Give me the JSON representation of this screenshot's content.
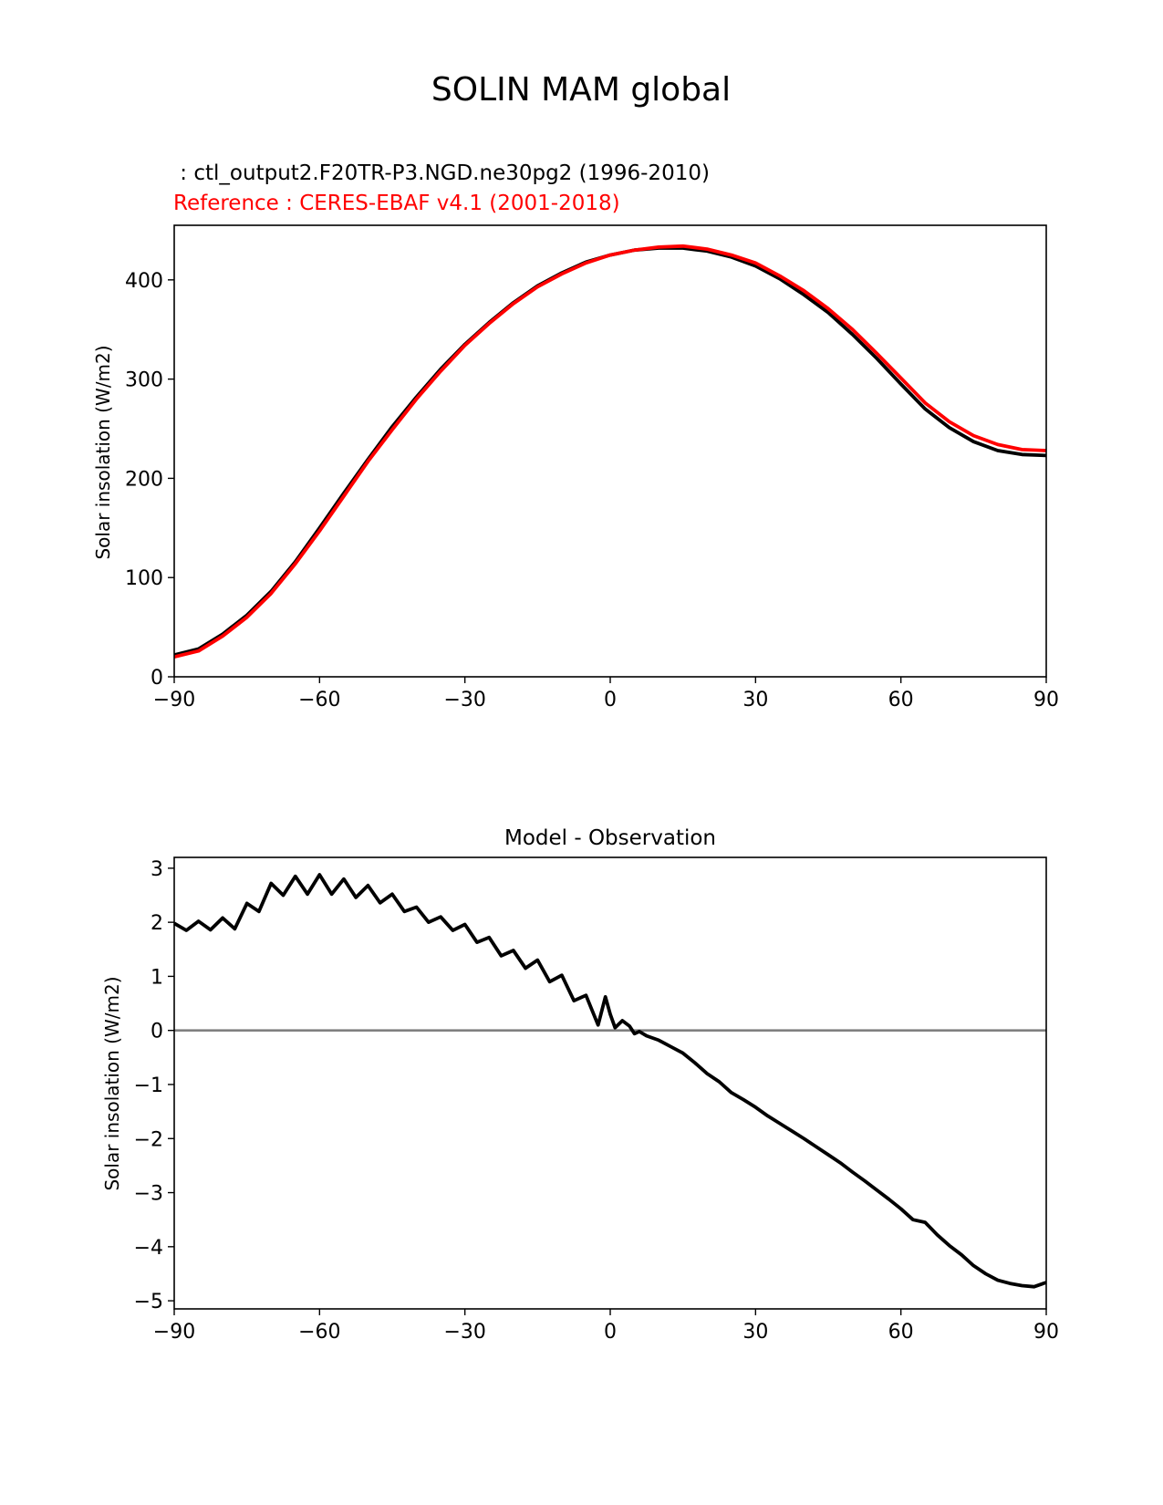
{
  "figure": {
    "title": "SOLIN MAM global",
    "test_label": " : ctl_output2.F20TR-P3.NGD.ne30pg2 (1996-2010)",
    "reference_label": "Reference : CERES-EBAF v4.1 (2001-2018)"
  },
  "colors": {
    "test": "#000000",
    "reference": "#ff0000",
    "zero_line": "#808080",
    "axes": "#000000"
  },
  "chart_data": [
    {
      "type": "line",
      "title": "",
      "xlabel": "",
      "ylabel": "Solar insolation (W/m2)",
      "xlim": [
        -90,
        90
      ],
      "ylim": [
        0,
        455
      ],
      "xticks": [
        -90,
        -60,
        -30,
        0,
        30,
        60,
        90
      ],
      "xtick_labels": [
        "−90",
        "−60",
        "−30",
        "0",
        "30",
        "60",
        "90"
      ],
      "yticks": [
        0,
        100,
        200,
        300,
        400
      ],
      "ytick_labels": [
        "0",
        "100",
        "200",
        "300",
        "400"
      ],
      "series": [
        {
          "name": "test",
          "x": [
            -90,
            -85,
            -80,
            -75,
            -70,
            -65,
            -60,
            -55,
            -50,
            -45,
            -40,
            -35,
            -30,
            -25,
            -20,
            -15,
            -10,
            -5,
            0,
            5,
            10,
            15,
            20,
            25,
            30,
            35,
            40,
            45,
            50,
            55,
            60,
            65,
            70,
            75,
            80,
            85,
            90
          ],
          "values": [
            22,
            28,
            43,
            62,
            86,
            116,
            150,
            185,
            219,
            252,
            282,
            310,
            335,
            357,
            377,
            394,
            407,
            418,
            425,
            430,
            432,
            432,
            429,
            423,
            414,
            401,
            385,
            367,
            345,
            321,
            295,
            270,
            251,
            237,
            228,
            224,
            223
          ]
        },
        {
          "name": "reference",
          "x": [
            -90,
            -85,
            -80,
            -75,
            -70,
            -65,
            -60,
            -55,
            -50,
            -45,
            -40,
            -35,
            -30,
            -25,
            -20,
            -15,
            -10,
            -5,
            0,
            5,
            10,
            15,
            20,
            25,
            30,
            35,
            40,
            45,
            50,
            55,
            60,
            65,
            70,
            75,
            80,
            85,
            90
          ],
          "values": [
            20,
            26,
            41,
            60,
            84,
            114,
            147,
            182,
            217,
            249,
            280,
            308,
            334,
            356,
            376,
            393,
            406,
            417,
            425,
            430,
            433,
            434,
            431,
            425,
            417,
            404,
            389,
            371,
            350,
            326,
            301,
            276,
            257,
            243,
            234,
            229,
            228
          ]
        }
      ]
    },
    {
      "type": "line",
      "title": "Model - Observation",
      "xlabel": "",
      "ylabel": "Solar insolation (W/m2)",
      "xlim": [
        -90,
        90
      ],
      "ylim": [
        -5.15,
        3.2
      ],
      "xticks": [
        -90,
        -60,
        -30,
        0,
        30,
        60,
        90
      ],
      "xtick_labels": [
        "−90",
        "−60",
        "−30",
        "0",
        "30",
        "60",
        "90"
      ],
      "yticks": [
        -5,
        -4,
        -3,
        -2,
        -1,
        0,
        1,
        2,
        3
      ],
      "ytick_labels": [
        "−5",
        "−4",
        "−3",
        "−2",
        "−1",
        "0",
        "1",
        "2",
        "3"
      ],
      "zero_line": true,
      "series": [
        {
          "name": "difference",
          "x": [
            -90,
            -87.5,
            -85,
            -82.5,
            -80,
            -77.5,
            -75,
            -72.5,
            -70,
            -67.5,
            -65,
            -62.5,
            -60,
            -57.5,
            -55,
            -52.5,
            -50,
            -47.5,
            -45,
            -42.5,
            -40,
            -37.5,
            -35,
            -32.5,
            -30,
            -27.5,
            -25,
            -22.5,
            -20,
            -17.5,
            -15,
            -12.5,
            -10,
            -7.5,
            -5,
            -2.5,
            -1,
            0,
            1,
            2.5,
            4,
            5,
            6,
            7.5,
            10,
            12.5,
            15,
            17.5,
            20,
            22.5,
            25,
            27.5,
            30,
            32.5,
            35,
            37.5,
            40,
            42.5,
            45,
            47.5,
            50,
            52.5,
            55,
            57.5,
            60,
            62.5,
            65,
            67.5,
            70,
            72.5,
            75,
            77.5,
            80,
            82.5,
            85,
            87.5,
            90
          ],
          "values": [
            1.98,
            1.85,
            2.02,
            1.86,
            2.08,
            1.88,
            2.35,
            2.2,
            2.72,
            2.5,
            2.85,
            2.52,
            2.88,
            2.52,
            2.8,
            2.46,
            2.68,
            2.36,
            2.52,
            2.2,
            2.28,
            2.0,
            2.1,
            1.85,
            1.96,
            1.63,
            1.72,
            1.38,
            1.48,
            1.15,
            1.3,
            0.9,
            1.02,
            0.55,
            0.65,
            0.1,
            0.62,
            0.3,
            0.05,
            0.18,
            0.08,
            -0.06,
            -0.02,
            -0.1,
            -0.18,
            -0.3,
            -0.42,
            -0.6,
            -0.8,
            -0.95,
            -1.15,
            -1.28,
            -1.42,
            -1.58,
            -1.72,
            -1.86,
            -2.0,
            -2.15,
            -2.3,
            -2.45,
            -2.62,
            -2.78,
            -2.95,
            -3.12,
            -3.3,
            -3.5,
            -3.55,
            -3.78,
            -3.98,
            -4.15,
            -4.35,
            -4.5,
            -4.62,
            -4.68,
            -4.72,
            -4.74,
            -4.66
          ]
        }
      ]
    }
  ]
}
